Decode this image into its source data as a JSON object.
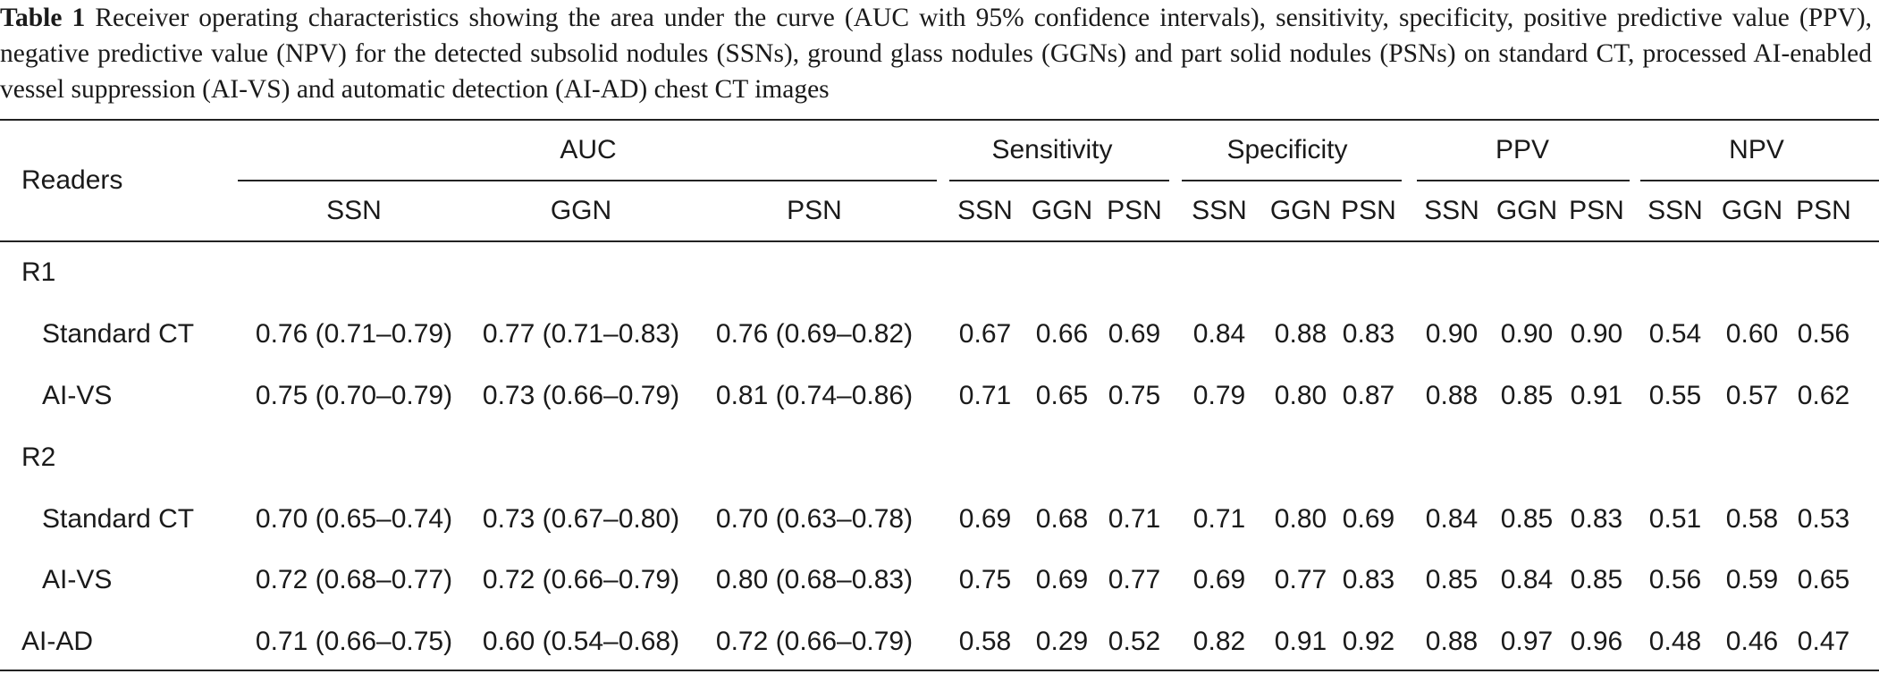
{
  "table": {
    "caption_label": "Table 1",
    "caption_text": "Receiver operating characteristics showing the area under the curve (AUC with 95% confidence intervals), sensitivity, specificity, positive predictive value (PPV), negative predictive value (NPV) for the detected subsolid nodules (SSNs), ground glass nodules (GGNs) and part solid nodules (PSNs) on standard CT, processed AI-enabled vessel suppression (AI-VS) and automatic detection (AI-AD) chest CT images",
    "header": {
      "readers": "Readers",
      "groups": [
        "AUC",
        "Sensitivity",
        "Specificity",
        "PPV",
        "NPV"
      ],
      "auc_sub": [
        "SSN",
        "GGN",
        "PSN"
      ],
      "sens_sub": [
        "SSN",
        "GGN",
        "PSN"
      ],
      "spec_sub": [
        "SSN",
        "GGN",
        "PSN"
      ],
      "ppv_sub": [
        "SSN",
        "GGN",
        "PSN"
      ],
      "npv_sub": [
        "SSN",
        "GGN",
        "PSN"
      ]
    },
    "rows": [
      {
        "label": "R1"
      },
      {
        "label": "Standard CT",
        "auc": [
          "0.76 (0.71–0.79)",
          "0.77 (0.71–0.83)",
          "0.76 (0.69–0.82)"
        ],
        "sens": [
          "0.67",
          "0.66",
          "0.69"
        ],
        "spec": [
          "0.84",
          "0.88",
          "0.83"
        ],
        "ppv": [
          "0.90",
          "0.90",
          "0.90"
        ],
        "npv": [
          "0.54",
          "0.60",
          "0.56"
        ]
      },
      {
        "label": "AI-VS",
        "auc": [
          "0.75 (0.70–0.79)",
          "0.73 (0.66–0.79)",
          "0.81 (0.74–0.86)"
        ],
        "sens": [
          "0.71",
          "0.65",
          "0.75"
        ],
        "spec": [
          "0.79",
          "0.80",
          "0.87"
        ],
        "ppv": [
          "0.88",
          "0.85",
          "0.91"
        ],
        "npv": [
          "0.55",
          "0.57",
          "0.62"
        ]
      },
      {
        "label": "R2"
      },
      {
        "label": "Standard CT",
        "auc": [
          "0.70 (0.65–0.74)",
          "0.73 (0.67–0.80)",
          "0.70 (0.63–0.78)"
        ],
        "sens": [
          "0.69",
          "0.68",
          "0.71"
        ],
        "spec": [
          "0.71",
          "0.80",
          "0.69"
        ],
        "ppv": [
          "0.84",
          "0.85",
          "0.83"
        ],
        "npv": [
          "0.51",
          "0.58",
          "0.53"
        ]
      },
      {
        "label": "AI-VS",
        "auc": [
          "0.72 (0.68–0.77)",
          "0.72 (0.66–0.79)",
          "0.80 (0.68–0.83)"
        ],
        "sens": [
          "0.75",
          "0.69",
          "0.77"
        ],
        "spec": [
          "0.69",
          "0.77",
          "0.83"
        ],
        "ppv": [
          "0.85",
          "0.84",
          "0.85"
        ],
        "npv": [
          "0.56",
          "0.59",
          "0.65"
        ]
      },
      {
        "label": "AI-AD",
        "auc": [
          "0.71 (0.66–0.75)",
          "0.60 (0.54–0.68)",
          "0.72 (0.66–0.79)"
        ],
        "sens": [
          "0.58",
          "0.29",
          "0.52"
        ],
        "spec": [
          "0.82",
          "0.91",
          "0.92"
        ],
        "ppv": [
          "0.88",
          "0.97",
          "0.96"
        ],
        "npv": [
          "0.48",
          "0.46",
          "0.47"
        ]
      }
    ]
  }
}
